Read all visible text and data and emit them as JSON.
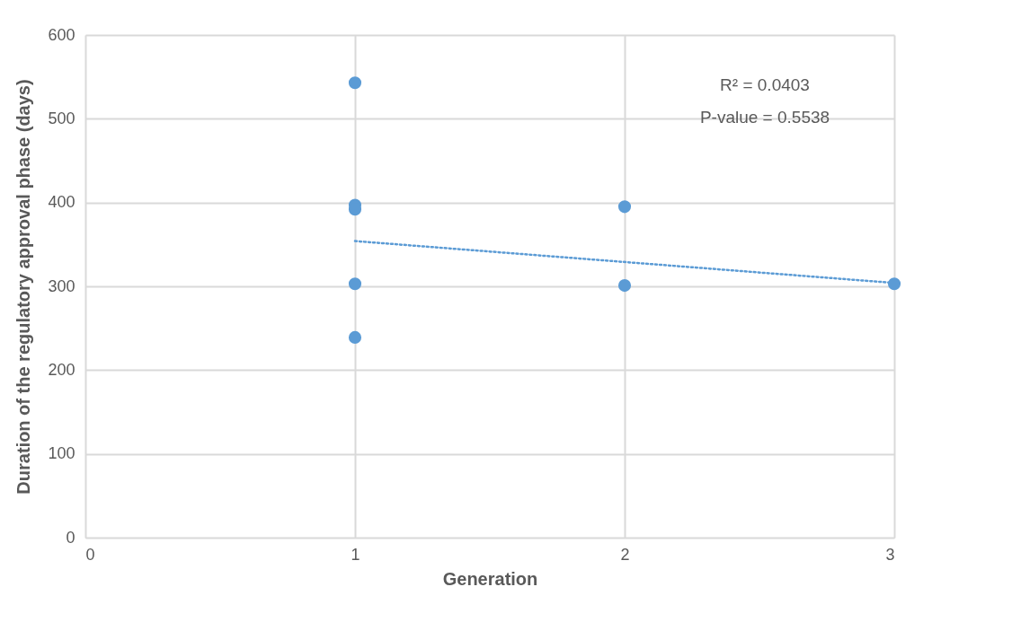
{
  "chart_data": {
    "type": "scatter",
    "xlabel": "Generation",
    "ylabel": "Duration of the regulatory approval phase (days)",
    "xlim": [
      0,
      3
    ],
    "xticks": [
      0,
      1,
      2,
      3
    ],
    "ylim": [
      0,
      600
    ],
    "yticks": [
      0,
      100,
      200,
      300,
      400,
      500,
      600
    ],
    "grid": true,
    "marker": "circle",
    "series": [
      {
        "color": "#5b9bd5",
        "x": [
          1,
          1,
          1,
          1,
          1,
          2,
          2,
          3
        ],
        "values": [
          543,
          397,
          392,
          303,
          239,
          395,
          301,
          303
        ]
      },
      {
        "type": "line",
        "color": "#5b9bd5",
        "line_style": "dotted",
        "marker": "none",
        "x": [
          1,
          3
        ],
        "values": [
          354,
          304
        ]
      }
    ],
    "annotations": [
      "R² = 0.0403",
      "P-value = 0.5538"
    ]
  }
}
